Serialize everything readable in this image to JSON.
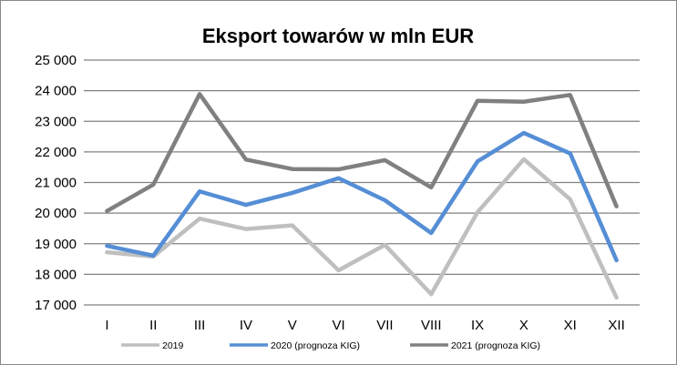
{
  "chart_data": {
    "type": "line",
    "title": "Eksport towarów w mln EUR",
    "xlabel": "",
    "ylabel": "",
    "ylim": [
      17000,
      25000
    ],
    "yticks": [
      17000,
      18000,
      19000,
      20000,
      21000,
      22000,
      23000,
      24000,
      25000
    ],
    "ytick_labels": [
      "17 000",
      "18 000",
      "19 000",
      "20 000",
      "21 000",
      "22 000",
      "23 000",
      "24 000",
      "25 000"
    ],
    "categories": [
      "I",
      "II",
      "III",
      "IV",
      "V",
      "VI",
      "VII",
      "VIII",
      "IX",
      "X",
      "XI",
      "XII"
    ],
    "grid": true,
    "legend_position": "bottom",
    "series": [
      {
        "name": "2019",
        "color": "#BFBFBF",
        "values": [
          18720,
          18580,
          19820,
          19480,
          19600,
          18130,
          18960,
          17350,
          20030,
          21760,
          20450,
          17240
        ]
      },
      {
        "name": "2020 (prognoza KIG)",
        "color": "#558ED5",
        "values": [
          18930,
          18610,
          20710,
          20270,
          20660,
          21140,
          20420,
          19350,
          21690,
          22620,
          21950,
          18460
        ]
      },
      {
        "name": "2021 (prognoza KIG)",
        "color": "#808080",
        "values": [
          20070,
          20930,
          23890,
          21750,
          21440,
          21430,
          21730,
          20840,
          23670,
          23640,
          23860,
          20220
        ]
      }
    ]
  }
}
